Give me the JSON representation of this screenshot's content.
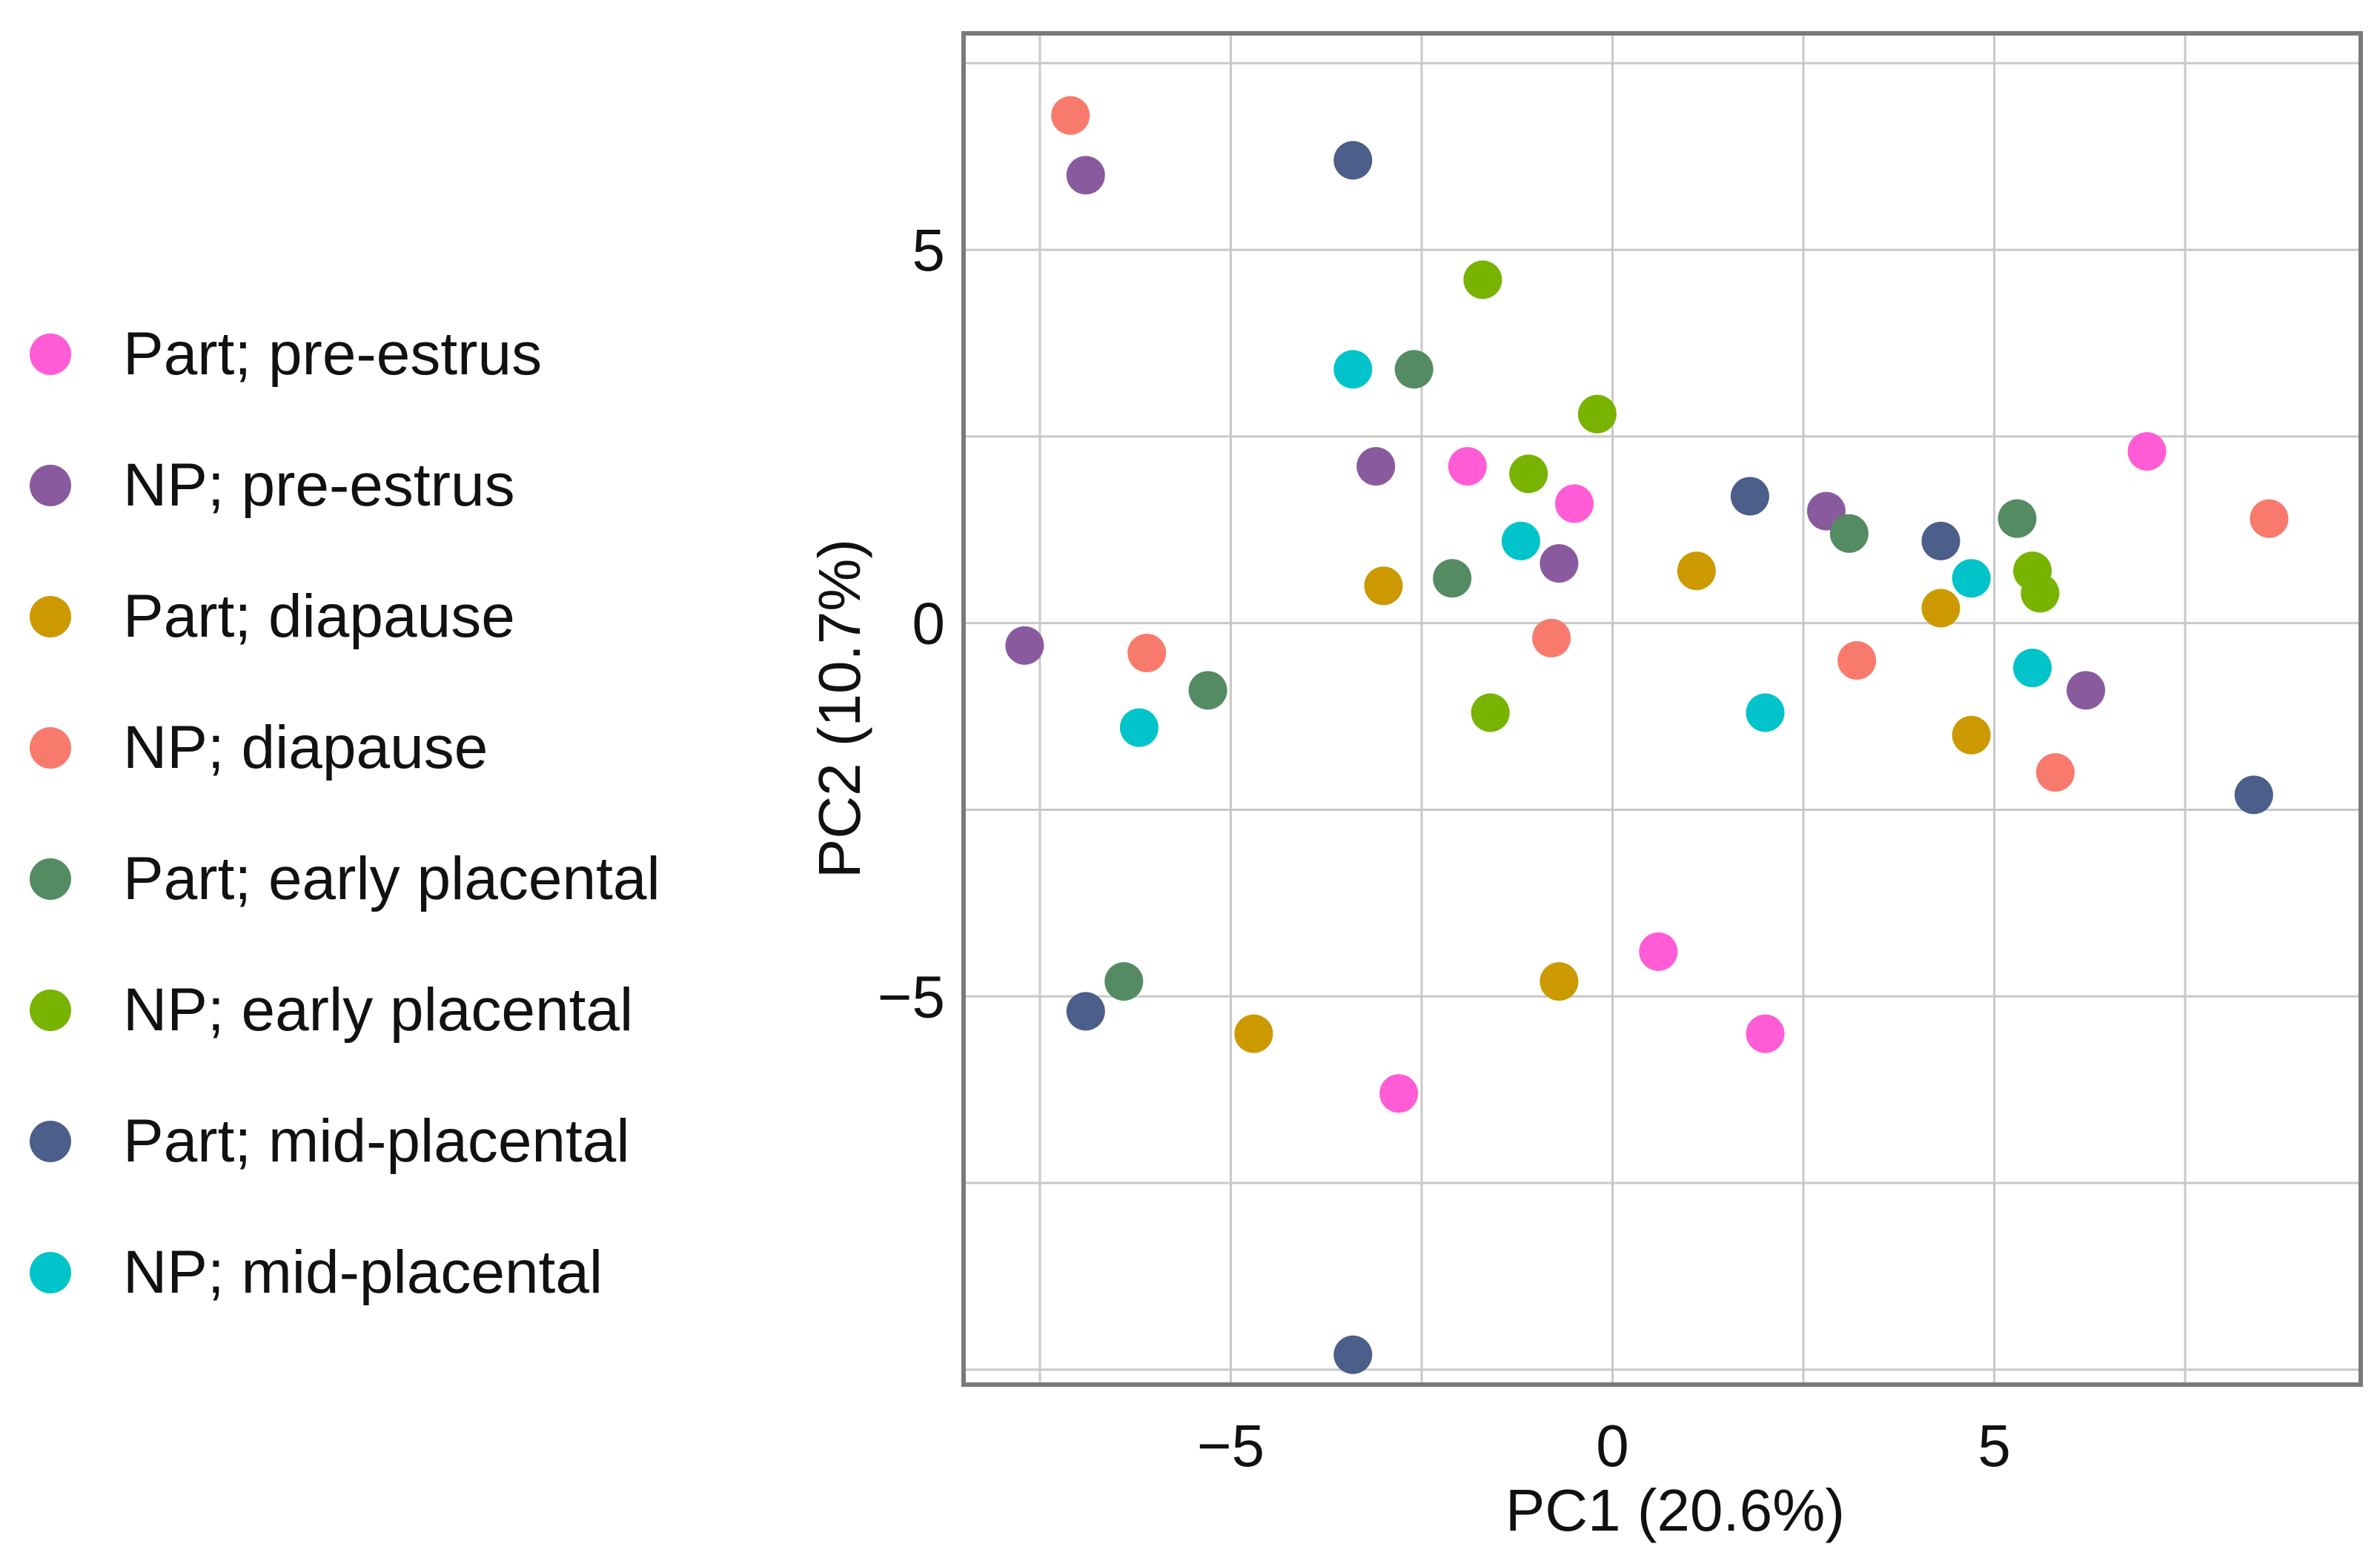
{
  "chart_data": {
    "type": "scatter",
    "title": "",
    "xlabel": "PC1 (20.6%)",
    "ylabel": "PC2 (10.7%)",
    "xlim": [
      -8.5,
      9.8
    ],
    "ylim": [
      -10.2,
      7.9
    ],
    "xticks": [
      -5,
      0,
      5
    ],
    "xtick_labels": [
      "−5",
      "0",
      "5"
    ],
    "yticks": [
      -5,
      0,
      5
    ],
    "ytick_labels": [
      "−5",
      "0",
      "5"
    ],
    "grid": true,
    "legend_position": "left",
    "series": [
      {
        "name": "Part; pre-estrus",
        "color": "#FF5CD6",
        "points": [
          [
            -1.9,
            2.1
          ],
          [
            -0.5,
            1.6
          ],
          [
            7.0,
            2.3
          ],
          [
            0.6,
            -4.4
          ],
          [
            2.0,
            -5.5
          ],
          [
            -2.8,
            -6.3
          ]
        ]
      },
      {
        "name": "NP; pre-estrus",
        "color": "#8A5A9E",
        "points": [
          [
            -6.9,
            6.0
          ],
          [
            -7.7,
            -0.3
          ],
          [
            -3.1,
            2.1
          ],
          [
            -0.7,
            0.8
          ],
          [
            2.8,
            1.5
          ],
          [
            6.2,
            -0.9
          ]
        ]
      },
      {
        "name": "Part; diapause",
        "color": "#CC9900",
        "points": [
          [
            -3.0,
            0.5
          ],
          [
            1.1,
            0.7
          ],
          [
            4.3,
            0.2
          ],
          [
            4.7,
            -1.5
          ],
          [
            -0.7,
            -4.8
          ],
          [
            -4.7,
            -5.5
          ]
        ]
      },
      {
        "name": "NP; diapause",
        "color": "#F87A6C",
        "points": [
          [
            -7.1,
            6.8
          ],
          [
            -6.1,
            -0.4
          ],
          [
            -0.8,
            -0.2
          ],
          [
            3.2,
            -0.5
          ],
          [
            5.8,
            -2.0
          ],
          [
            8.6,
            1.4
          ]
        ]
      },
      {
        "name": "Part; early placental",
        "color": "#548B62",
        "points": [
          [
            -2.6,
            3.4
          ],
          [
            -2.1,
            0.6
          ],
          [
            -5.3,
            -0.9
          ],
          [
            3.1,
            1.2
          ],
          [
            5.3,
            1.4
          ],
          [
            -6.4,
            -4.8
          ]
        ]
      },
      {
        "name": "NP; early placental",
        "color": "#77B300",
        "points": [
          [
            -1.7,
            4.6
          ],
          [
            -0.2,
            2.8
          ],
          [
            -1.1,
            2.0
          ],
          [
            -1.6,
            -1.2
          ],
          [
            5.5,
            0.7
          ],
          [
            5.6,
            0.4
          ]
        ]
      },
      {
        "name": "Part; mid-placental",
        "color": "#4C5E8A",
        "points": [
          [
            -3.4,
            6.2
          ],
          [
            1.8,
            1.7
          ],
          [
            4.3,
            1.1
          ],
          [
            8.4,
            -2.3
          ],
          [
            -6.9,
            -5.2
          ],
          [
            -3.4,
            -9.8
          ]
        ]
      },
      {
        "name": "NP; mid-placental",
        "color": "#00C4C9",
        "points": [
          [
            -3.4,
            3.4
          ],
          [
            -1.2,
            1.1
          ],
          [
            4.7,
            0.6
          ],
          [
            5.5,
            -0.6
          ],
          [
            2.0,
            -1.2
          ],
          [
            -6.2,
            -1.4
          ]
        ]
      }
    ]
  }
}
